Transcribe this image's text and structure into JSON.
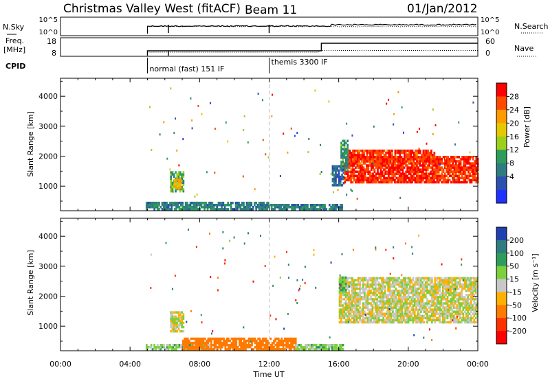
{
  "header": {
    "title": "Christmas Valley West (fitACF)",
    "beam": "Beam 11",
    "date": "01/Jan/2012"
  },
  "strip1": {
    "left_label": "N.Sky",
    "right_label": "N.Search",
    "left_ticks": [
      "10^5",
      "10^0"
    ],
    "right_ticks": [
      "10^5",
      "10^0"
    ]
  },
  "strip2": {
    "left_label_line1": "Freq.",
    "left_label_line2": "[MHz]",
    "right_label": "Nave",
    "left_ticks": [
      "18",
      "8"
    ],
    "right_ticks": [
      "60",
      "0"
    ]
  },
  "cpid": {
    "label": "CPID",
    "modes": [
      {
        "name": "normal (fast) 151 IF",
        "start_hour": 5.0
      },
      {
        "name": "themis 3300 IF",
        "start_hour": 12.0
      }
    ]
  },
  "power_panel": {
    "ylabel": "Slant Range [km]",
    "yticks": [
      "1000",
      "2000",
      "3000",
      "4000"
    ],
    "colorbar_title": "Power [dB]",
    "colorbar_ticks": [
      "28",
      "24",
      "20",
      "16",
      "12",
      "8",
      "4"
    ],
    "colorbar_colors": [
      "#ff0000",
      "#ff4a00",
      "#ff9a00",
      "#e6c800",
      "#9ccf1e",
      "#2e9c5a",
      "#2e7c80",
      "#2d4fb0",
      "#2030ff"
    ]
  },
  "velocity_panel": {
    "ylabel": "Slant Range [km]",
    "yticks": [
      "1000",
      "2000",
      "3000",
      "4000"
    ],
    "colorbar_title": "Velocity [m s⁻¹]",
    "colorbar_ticks": [
      "200",
      "100",
      "50",
      "15",
      "-15",
      "-50",
      "-100",
      "-200"
    ],
    "colorbar_colors": [
      "#2040b0",
      "#2e7c80",
      "#2e9c5a",
      "#7cd03c",
      "#c8c8c8",
      "#ffb000",
      "#ff7a00",
      "#ff3000",
      "#ff0000"
    ]
  },
  "xaxis": {
    "label": "Time UT",
    "ticks": [
      "00:00",
      "04:00",
      "08:00",
      "12:00",
      "16:00",
      "20:00",
      "00:00"
    ]
  },
  "chart_data": {
    "type": "heatmap",
    "title": "Christmas Valley West (fitACF)",
    "xlabel": "Time UT",
    "ylabel": "Slant Range [km]",
    "xlim_hours": [
      0,
      24
    ],
    "ylim_km": [
      180,
      4600
    ],
    "panels": [
      {
        "name": "Power [dB]",
        "range": [
          0,
          30
        ],
        "regions": [
          {
            "t0": 4.9,
            "t1": 12.0,
            "r0": 200,
            "r1": 420,
            "level": 8
          },
          {
            "t0": 12.0,
            "t1": 16.2,
            "r0": 200,
            "r1": 380,
            "level": 8
          },
          {
            "t0": 6.3,
            "t1": 7.1,
            "r0": 800,
            "r1": 1500,
            "level": 12
          },
          {
            "t0": 6.5,
            "t1": 6.9,
            "r0": 900,
            "r1": 1200,
            "level": 20
          },
          {
            "t0": 15.6,
            "t1": 16.3,
            "r0": 1000,
            "r1": 1700,
            "level": 6
          },
          {
            "t0": 16.3,
            "t1": 24.0,
            "r0": 1100,
            "r1": 2000,
            "level": 28
          },
          {
            "t0": 16.5,
            "t1": 21.5,
            "r0": 1800,
            "r1": 2200,
            "level": 28
          },
          {
            "t0": 16.1,
            "t1": 16.5,
            "r0": 1500,
            "r1": 2500,
            "level": 10
          }
        ]
      },
      {
        "name": "Velocity [m s-1]",
        "range": [
          -200,
          200
        ],
        "regions": [
          {
            "t0": 4.9,
            "t1": 8.5,
            "r0": 200,
            "r1": 400,
            "level": 15
          },
          {
            "t0": 7.0,
            "t1": 13.5,
            "r0": 200,
            "r1": 600,
            "level": -50
          },
          {
            "t0": 13.5,
            "t1": 16.2,
            "r0": 200,
            "r1": 350,
            "level": 15
          },
          {
            "t0": 6.3,
            "t1": 7.1,
            "r0": 800,
            "r1": 1500,
            "level": 0
          },
          {
            "t0": 16.0,
            "t1": 24.0,
            "r0": 1100,
            "r1": 2600,
            "level": 0
          },
          {
            "t0": 16.0,
            "t1": 16.4,
            "r0": 2100,
            "r1": 2600,
            "level": 30
          }
        ]
      }
    ]
  }
}
